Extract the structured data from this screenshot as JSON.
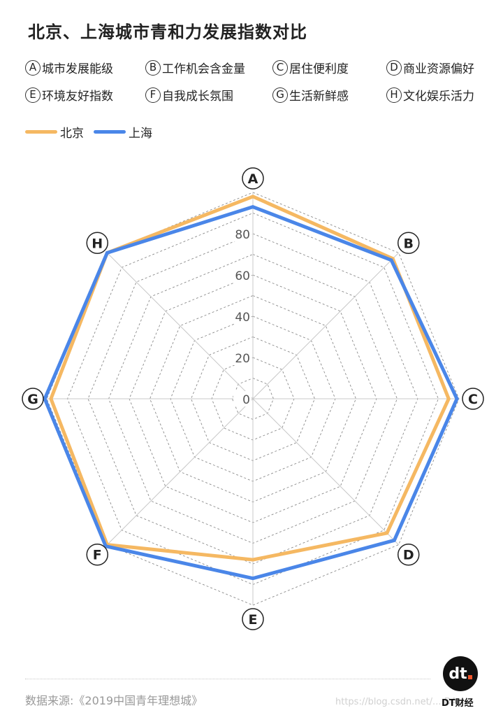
{
  "title": "北京、上海城市青和力发展指数对比",
  "dimensions": [
    {
      "letter": "A",
      "label": "城市发展能级"
    },
    {
      "letter": "B",
      "label": "工作机会含金量"
    },
    {
      "letter": "C",
      "label": "居住便利度"
    },
    {
      "letter": "D",
      "label": "商业资源偏好"
    },
    {
      "letter": "E",
      "label": "环境友好指数"
    },
    {
      "letter": "F",
      "label": "自我成长氛围"
    },
    {
      "letter": "G",
      "label": "生活新鲜感"
    },
    {
      "letter": "H",
      "label": "文化娱乐活力"
    }
  ],
  "chart_data": {
    "type": "radar",
    "categories": [
      "A",
      "B",
      "C",
      "D",
      "E",
      "F",
      "G",
      "H"
    ],
    "ticks": [
      "0",
      "20",
      "40",
      "60",
      "80"
    ],
    "rlim": [
      0,
      100
    ],
    "grid": true,
    "series": [
      {
        "name": "北京",
        "color": "#f5b862",
        "values": [
          98,
          96,
          95,
          92,
          78,
          100,
          98,
          100
        ]
      },
      {
        "name": "上海",
        "color": "#4a86e8",
        "values": [
          93,
          95,
          99,
          97,
          87,
          101,
          101,
          100
        ]
      }
    ]
  },
  "source": "数据来源:《2019中国青年理想城》",
  "brand": {
    "logo_text": "dt",
    "name": "DT财经"
  },
  "watermark": "https://blog.csdn.net/... DA"
}
